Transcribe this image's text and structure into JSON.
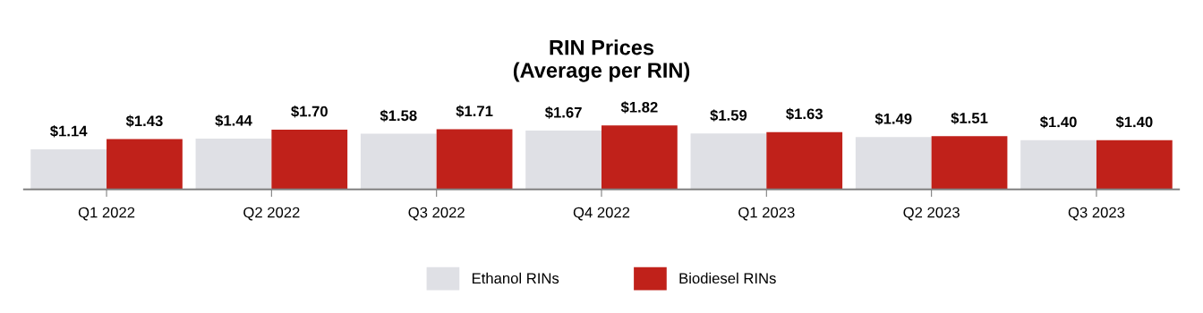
{
  "chart_data": {
    "type": "bar",
    "title": "RIN Prices\n(Average per RIN)",
    "categories": [
      "Q1 2022",
      "Q2 2022",
      "Q3 2022",
      "Q4 2022",
      "Q1 2023",
      "Q2 2023",
      "Q3 2023"
    ],
    "series": [
      {
        "name": "Ethanol RINs",
        "color": "#dfe0e5",
        "values": [
          1.14,
          1.44,
          1.58,
          1.67,
          1.59,
          1.49,
          1.4
        ],
        "value_labels": [
          "$1.14",
          "$1.44",
          "$1.58",
          "$1.67",
          "$1.59",
          "$1.49",
          "$1.40"
        ]
      },
      {
        "name": "Biodiesel RINs",
        "color": "#c0211a",
        "values": [
          1.43,
          1.7,
          1.71,
          1.82,
          1.63,
          1.51,
          1.4
        ],
        "value_labels": [
          "$1.43",
          "$1.70",
          "$1.71",
          "$1.82",
          "$1.63",
          "$1.51",
          "$1.40"
        ]
      }
    ],
    "legend": "bottom",
    "grid": false
  }
}
